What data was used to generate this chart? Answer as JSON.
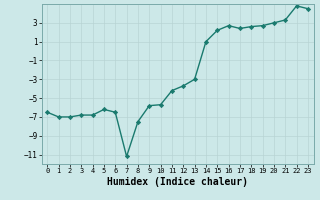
{
  "x": [
    0,
    1,
    2,
    3,
    4,
    5,
    6,
    7,
    8,
    9,
    10,
    11,
    12,
    13,
    14,
    15,
    16,
    17,
    18,
    19,
    20,
    21,
    22,
    23
  ],
  "y": [
    -6.5,
    -7.0,
    -7.0,
    -6.8,
    -6.8,
    -6.2,
    -6.5,
    -11.2,
    -7.5,
    -5.8,
    -5.7,
    -4.2,
    -3.7,
    -3.0,
    1.0,
    2.2,
    2.7,
    2.4,
    2.6,
    2.7,
    3.0,
    3.3,
    4.8,
    4.5
  ],
  "line_color": "#1a7a6e",
  "marker": "D",
  "marker_size": 2.2,
  "linewidth": 1.0,
  "xlabel": "Humidex (Indice chaleur)",
  "xlabel_fontsize": 7,
  "xlabel_fontweight": "bold",
  "ylim": [
    -12,
    5
  ],
  "xlim": [
    -0.5,
    23.5
  ],
  "yticks": [
    3,
    1,
    -1,
    -3,
    -5,
    -7,
    -9,
    -11
  ],
  "xticks": [
    0,
    1,
    2,
    3,
    4,
    5,
    6,
    7,
    8,
    9,
    10,
    11,
    12,
    13,
    14,
    15,
    16,
    17,
    18,
    19,
    20,
    21,
    22,
    23
  ],
  "bg_color": "#cce8e8",
  "grid_color": "#e8f5f5",
  "grid_color2": "#c5dcdc",
  "tick_fontsize": 5.5,
  "xtick_fontsize": 5
}
